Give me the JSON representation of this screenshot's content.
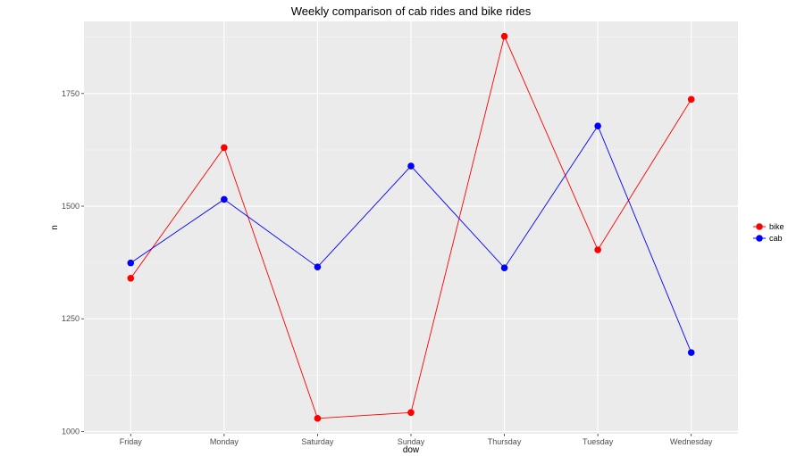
{
  "chart_data": {
    "type": "line",
    "title": "Weekly comparison of cab rides and bike rides",
    "xlabel": "dow",
    "ylabel": "n",
    "categories": [
      "Friday",
      "Monday",
      "Saturday",
      "Sunday",
      "Thursday",
      "Tuesday",
      "Wednesday"
    ],
    "ylim": [
      995,
      1910
    ],
    "yticks": [
      1000,
      1250,
      1500,
      1750
    ],
    "grid": true,
    "legend_position": "right",
    "series": [
      {
        "name": "bike",
        "color": "#ff0000",
        "values": [
          1340,
          1630,
          1029,
          1042,
          1877,
          1403,
          1737
        ]
      },
      {
        "name": "cab",
        "color": "#0000ff",
        "values": [
          1374,
          1515,
          1365,
          1589,
          1363,
          1678,
          1175
        ]
      }
    ]
  }
}
